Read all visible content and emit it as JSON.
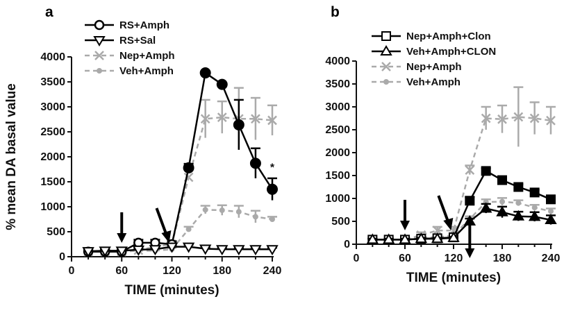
{
  "chart_data": [
    {
      "type": "line",
      "panel_label": "a",
      "xlabel": "TIME (minutes)",
      "ylabel": "% mean DA basal value",
      "xlim": [
        0,
        240
      ],
      "ylim": [
        0,
        4000
      ],
      "xticks": [
        0,
        60,
        120,
        180,
        240
      ],
      "yticks": [
        0,
        500,
        1000,
        1500,
        2000,
        2500,
        3000,
        3500,
        4000
      ],
      "legend_position": "top-left",
      "annotations": [
        {
          "text": "*",
          "x": 240,
          "y": 1800
        }
      ],
      "arrows_down_at_x": [
        60,
        110
      ],
      "series": [
        {
          "name": "RS+Amph",
          "marker": "circle",
          "color": "#000000",
          "x": [
            20,
            40,
            60,
            80,
            100,
            120,
            140,
            160,
            180,
            200,
            220,
            240
          ],
          "y": [
            100,
            100,
            100,
            280,
            280,
            250,
            1780,
            3680,
            3450,
            2640,
            1870,
            1350
          ],
          "err": [
            60,
            40,
            40,
            60,
            60,
            60,
            80,
            0,
            0,
            500,
            300,
            220
          ]
        },
        {
          "name": "RS+Sal",
          "marker": "triangle-down",
          "color": "#000000",
          "x": [
            20,
            40,
            60,
            80,
            100,
            120,
            140,
            160,
            180,
            200,
            220,
            240
          ],
          "y": [
            110,
            120,
            120,
            140,
            150,
            200,
            200,
            160,
            150,
            150,
            150,
            150
          ],
          "err": [
            30,
            30,
            30,
            30,
            30,
            40,
            40,
            30,
            30,
            30,
            30,
            30
          ]
        },
        {
          "name": "Nep+Amph",
          "marker": "x",
          "color": "#aaaaaa",
          "x": [
            20,
            40,
            60,
            80,
            100,
            120,
            140,
            160,
            180,
            200,
            220,
            240
          ],
          "y": [
            100,
            100,
            100,
            130,
            200,
            250,
            1590,
            2760,
            2790,
            2760,
            2760,
            2730
          ],
          "err": [
            40,
            40,
            40,
            40,
            60,
            60,
            0,
            380,
            320,
            620,
            420,
            300
          ]
        },
        {
          "name": "Veh+Amph",
          "marker": "dot",
          "color": "#aaaaaa",
          "x": [
            20,
            40,
            60,
            80,
            100,
            120,
            140,
            160,
            180,
            200,
            220,
            240
          ],
          "y": [
            100,
            100,
            100,
            120,
            120,
            150,
            550,
            940,
            930,
            900,
            800,
            750
          ],
          "err": [
            30,
            30,
            30,
            30,
            30,
            30,
            50,
            80,
            100,
            120,
            120,
            50
          ]
        }
      ]
    },
    {
      "type": "line",
      "panel_label": "b",
      "xlabel": "TIME (minutes)",
      "ylabel": "",
      "xlim": [
        0,
        240
      ],
      "ylim": [
        0,
        4000
      ],
      "xticks": [
        0,
        60,
        120,
        180,
        240
      ],
      "yticks": [
        0,
        500,
        1000,
        1500,
        2000,
        2500,
        3000,
        3500,
        4000
      ],
      "legend_position": "top-left",
      "arrows_down_at_x": [
        60,
        110,
        140
      ],
      "series": [
        {
          "name": "Nep+Amph+Clon",
          "marker": "square",
          "color": "#000000",
          "x": [
            20,
            40,
            60,
            80,
            100,
            120,
            140,
            160,
            180,
            200,
            220,
            240
          ],
          "y": [
            100,
            100,
            100,
            120,
            130,
            150,
            950,
            1600,
            1400,
            1250,
            1130,
            980
          ],
          "err": [
            20,
            20,
            20,
            20,
            20,
            30,
            80,
            60,
            60,
            60,
            60,
            60
          ]
        },
        {
          "name": "Veh+Amph+CLON",
          "marker": "triangle-up",
          "color": "#000000",
          "x": [
            20,
            40,
            60,
            80,
            100,
            120,
            140,
            160,
            180,
            200,
            220,
            240
          ],
          "y": [
            100,
            100,
            100,
            120,
            120,
            140,
            500,
            780,
            700,
            610,
            600,
            530
          ],
          "err": [
            20,
            20,
            20,
            20,
            20,
            20,
            60,
            100,
            120,
            100,
            100,
            100
          ]
        },
        {
          "name": "Nep+Amph",
          "marker": "x",
          "color": "#aaaaaa",
          "x": [
            20,
            40,
            60,
            80,
            100,
            120,
            140,
            160,
            180,
            200,
            220,
            240
          ],
          "y": [
            100,
            100,
            100,
            200,
            300,
            300,
            1620,
            2750,
            2730,
            2780,
            2750,
            2700
          ],
          "err": [
            30,
            30,
            30,
            60,
            80,
            80,
            100,
            250,
            300,
            650,
            350,
            300
          ]
        },
        {
          "name": "Veh+Amph",
          "marker": "dot",
          "color": "#aaaaaa",
          "x": [
            20,
            40,
            60,
            80,
            100,
            120,
            140,
            160,
            180,
            200,
            220,
            240
          ],
          "y": [
            100,
            100,
            100,
            150,
            150,
            200,
            550,
            920,
            930,
            900,
            800,
            720
          ],
          "err": [
            20,
            20,
            20,
            30,
            30,
            40,
            60,
            60,
            80,
            60,
            60,
            60
          ]
        }
      ]
    }
  ]
}
